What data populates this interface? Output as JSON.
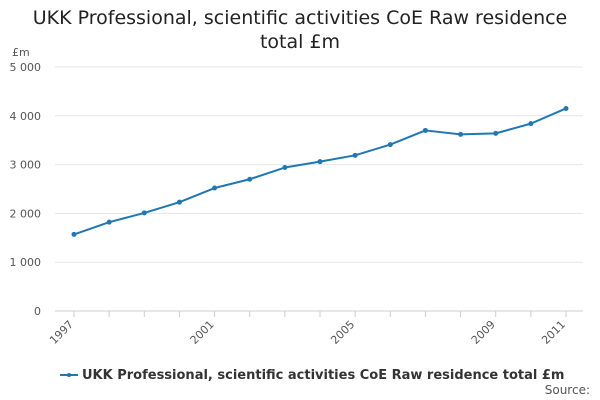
{
  "chart_data": {
    "type": "line",
    "title_lines": [
      "UKK Professional, scientific activities CoE Raw residence",
      "total £m"
    ],
    "ylabel": "£m",
    "xlabel": "",
    "ylim": [
      0,
      5000
    ],
    "yticks": [
      0,
      1000,
      2000,
      3000,
      4000,
      5000
    ],
    "ytick_labels": [
      "0",
      "1 000",
      "2 000",
      "3 000",
      "4 000",
      "5 000"
    ],
    "xlim": [
      1997,
      2011
    ],
    "xtick_labels": [
      "1997",
      "2001",
      "2005",
      "2009",
      "2011"
    ],
    "grid": true,
    "legend_position": "bottom-left",
    "series": [
      {
        "name": "UKK Professional, scientific activities CoE Raw residence total £m",
        "color": "#1f77b4",
        "x": [
          1997,
          1998,
          1999,
          2000,
          2001,
          2002,
          2003,
          2004,
          2005,
          2006,
          2007,
          2008,
          2009,
          2010,
          2011
        ],
        "values": [
          1570,
          1820,
          2010,
          2230,
          2520,
          2700,
          2940,
          3060,
          3190,
          3410,
          3700,
          3620,
          3640,
          3840,
          4150
        ]
      }
    ]
  },
  "source_label": "Source:"
}
